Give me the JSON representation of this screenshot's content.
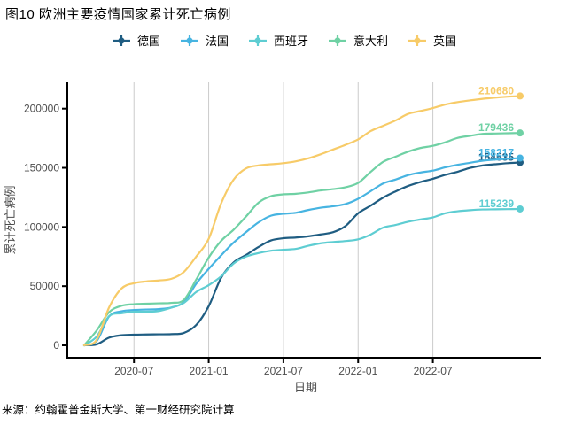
{
  "title": "图10 欧洲主要疫情国家累计死亡病例",
  "source": "来源：约翰霍普金斯大学、第一财经研究院计算",
  "colors": {
    "axis": "#000000",
    "gridline": "#cbcbcb",
    "tick_label": "#4d4d4d",
    "axis_title": "#4d4d4d"
  },
  "chart_data": {
    "type": "line",
    "title": "图10 欧洲主要疫情国家累计死亡病例",
    "xlabel": "日期",
    "ylabel": "累计死亡病例",
    "grid": "vertical-only",
    "legend_position": "top",
    "x_monthly_start": "2020-03",
    "x_tick_labels": [
      "2020-07",
      "2021-01",
      "2021-07",
      "2022-01",
      "2022-07"
    ],
    "x_tick_month_indices": [
      4,
      10,
      16,
      22,
      28
    ],
    "y_ticks": [
      0,
      50000,
      100000,
      150000,
      200000
    ],
    "y_tick_labels": [
      "0",
      "50000",
      "100000",
      "150000",
      "200000"
    ],
    "ylim": [
      0,
      222000
    ],
    "series": [
      {
        "id": "germany",
        "name": "德国",
        "color": "#1f5d82",
        "end_label": "154535",
        "values": [
          17,
          775,
          6467,
          8511,
          8985,
          9148,
          9302,
          9464,
          10452,
          17177,
          33071,
          57120,
          70045,
          76343,
          83097,
          88595,
          90472,
          91110,
          92130,
          93715,
          95606,
          100956,
          111602,
          117974,
          124775,
          130029,
          134624,
          138005,
          140734,
          144051,
          146732,
          149948,
          152000,
          153000,
          153900,
          154535
        ]
      },
      {
        "id": "france",
        "name": "法国",
        "color": "#47b4e1",
        "end_label": "158217",
        "values": [
          48,
          3523,
          24342,
          28717,
          29843,
          30254,
          30602,
          31956,
          36565,
          52127,
          64632,
          76057,
          86803,
          95677,
          103918,
          109518,
          111161,
          111993,
          114392,
          116308,
          117533,
          119457,
          123851,
          130232,
          136779,
          140051,
          143805,
          146056,
          147626,
          150403,
          152596,
          154301,
          156016,
          156900,
          157600,
          158217
        ]
      },
      {
        "id": "spain",
        "name": "西班牙",
        "color": "#5ecdd2",
        "end_label": "115239",
        "values": [
          10,
          7340,
          24543,
          27127,
          28346,
          28443,
          29011,
          31791,
          35878,
          45069,
          50837,
          58319,
          69142,
          75010,
          77943,
          79905,
          80779,
          81486,
          84146,
          86229,
          87289,
          88159,
          89573,
          93553,
          99410,
          101703,
          104456,
          106341,
          108111,
          111667,
          113288,
          114209,
          114797,
          114950,
          115100,
          115239
        ]
      },
      {
        "id": "italy",
        "name": "意大利",
        "color": "#6fd1a4",
        "end_label": "179436",
        "values": [
          52,
          12428,
          27967,
          33415,
          34767,
          35141,
          35483,
          35894,
          38321,
          55576,
          74159,
          88279,
          97699,
          108879,
          120544,
          126002,
          127566,
          128063,
          129221,
          130870,
          132004,
          133627,
          137247,
          146498,
          155000,
          159383,
          163612,
          166756,
          168604,
          171604,
          175303,
          177040,
          178633,
          178950,
          179200,
          179436
        ]
      },
      {
        "id": "uk",
        "name": "英国",
        "color": "#f7cb68",
        "end_label": "210680",
        "values": [
          50,
          4500,
          32000,
          48000,
          52500,
          54000,
          54800,
          56200,
          62000,
          75000,
          90000,
          120000,
          140000,
          149500,
          152000,
          153000,
          153900,
          155500,
          158000,
          161500,
          165500,
          169500,
          174000,
          181000,
          185500,
          190000,
          195500,
          198000,
          200500,
          203500,
          205500,
          207000,
          208300,
          209300,
          210100,
          210680
        ]
      }
    ]
  }
}
